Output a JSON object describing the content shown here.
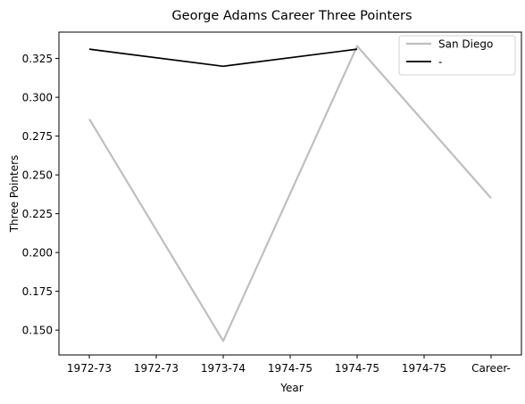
{
  "chart_data": {
    "type": "line",
    "title": "George Adams  Career Three Pointers",
    "xlabel": "Year",
    "ylabel": "Three Pointers",
    "categories": [
      "1972-73",
      "1972-73",
      "1973-74",
      "1974-75",
      "1974-75",
      "1974-75",
      "Career-"
    ],
    "series": [
      {
        "name": "San Diego",
        "color": "#bfbfbf",
        "points": [
          [
            0,
            0.286
          ],
          [
            2,
            0.143
          ],
          [
            4,
            0.333
          ],
          [
            6,
            0.235
          ]
        ]
      },
      {
        "name": "-",
        "color": "#000000",
        "points": [
          [
            0,
            0.331
          ],
          [
            2,
            0.32
          ],
          [
            4,
            0.331
          ]
        ]
      }
    ],
    "ylim": [
      0.134,
      0.342
    ],
    "yticks": [
      "0.150",
      "0.175",
      "0.200",
      "0.225",
      "0.250",
      "0.275",
      "0.300",
      "0.325"
    ],
    "grid": false,
    "legend_position": "top-right"
  }
}
